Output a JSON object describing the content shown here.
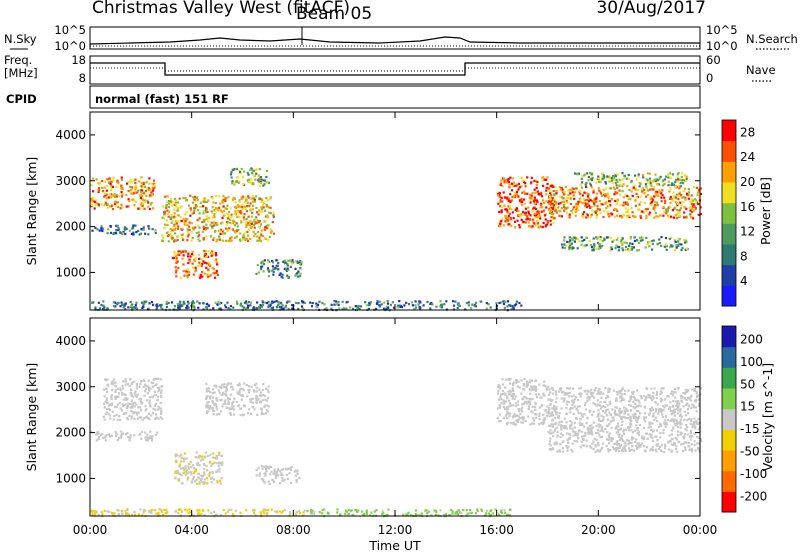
{
  "header": {
    "title": "Christmas Valley West (fitACF)",
    "beam": "Beam 05",
    "date": "30/Aug/2017"
  },
  "panel_labels": {
    "nsky": "N.Sky",
    "nsearch": "N.Search",
    "freq": "Freq.",
    "freq_unit": "[MHz]",
    "nave": "Nave",
    "cpid": "CPID",
    "cpid_value": "normal (fast) 151 RF"
  },
  "noise_ticks_left": [
    "10^5",
    "10^0"
  ],
  "noise_ticks_right": [
    "10^5",
    "10^0"
  ],
  "freq_ticks_left": [
    "18",
    "8"
  ],
  "nave_ticks_right": [
    "60",
    "0"
  ],
  "colors": {
    "scatter_gray": "#c8c8c8",
    "power_scale": [
      "#1a1aff",
      "#1f3fa6",
      "#2e7a72",
      "#4e9a5e",
      "#7fbf3f",
      "#f0e020",
      "#ffa000",
      "#ff5000",
      "#ff0000"
    ],
    "velocity_scale": [
      "#ff0000",
      "#ff6a00",
      "#ffa000",
      "#f2d000",
      "#c8c8c8",
      "#7fd04a",
      "#3aa84a",
      "#2a6aa0",
      "#1a1ab0"
    ]
  },
  "chart_data": [
    {
      "type": "heatmap",
      "title": "",
      "xlabel": "",
      "ylabel": "Slant Range [km]",
      "x_ticks": [
        "00:00",
        "04:00",
        "08:00",
        "12:00",
        "16:00",
        "20:00",
        "00:00"
      ],
      "y_ticks": [
        "1000",
        "2000",
        "3000",
        "4000"
      ],
      "xlim_hours": [
        0,
        24
      ],
      "ylim_km": [
        180,
        4500
      ],
      "colorbar": {
        "label": "Power [dB]",
        "ticks": [
          "4",
          "8",
          "12",
          "16",
          "20",
          "24",
          "28"
        ],
        "range": [
          0,
          30
        ]
      },
      "regions": [
        {
          "t0": 0.0,
          "t1": 2.5,
          "r0": 2400,
          "r1": 3100,
          "value": 22
        },
        {
          "t0": 2.8,
          "t1": 7.2,
          "r0": 1700,
          "r1": 2700,
          "value": 20
        },
        {
          "t0": 3.2,
          "t1": 5.0,
          "r0": 900,
          "r1": 1500,
          "value": 24
        },
        {
          "t0": 6.5,
          "t1": 8.3,
          "r0": 900,
          "r1": 1300,
          "value": 10
        },
        {
          "t0": 0.0,
          "t1": 2.6,
          "r0": 1850,
          "r1": 2050,
          "value": 8
        },
        {
          "t0": 5.5,
          "t1": 7.0,
          "r0": 2900,
          "r1": 3300,
          "value": 14
        },
        {
          "t0": 16.0,
          "t1": 18.2,
          "r0": 2000,
          "r1": 3100,
          "value": 26
        },
        {
          "t0": 18.0,
          "t1": 24.0,
          "r0": 2200,
          "r1": 2900,
          "value": 22
        },
        {
          "t0": 18.5,
          "t1": 23.5,
          "r0": 1500,
          "r1": 1800,
          "value": 12
        },
        {
          "t0": 19.0,
          "t1": 23.5,
          "r0": 2900,
          "r1": 3200,
          "value": 14
        },
        {
          "t0": 0.0,
          "t1": 17.0,
          "r0": 200,
          "r1": 400,
          "value": 8
        }
      ]
    },
    {
      "type": "heatmap",
      "title": "",
      "xlabel": "Time UT",
      "ylabel": "Slant Range [km]",
      "x_ticks": [
        "00:00",
        "04:00",
        "08:00",
        "12:00",
        "16:00",
        "20:00",
        "00:00"
      ],
      "y_ticks": [
        "1000",
        "2000",
        "3000",
        "4000"
      ],
      "xlim_hours": [
        0,
        24
      ],
      "ylim_km": [
        180,
        4500
      ],
      "colorbar": {
        "label": "Velocity [m s^-1]",
        "ticks": [
          "200",
          "100",
          "50",
          "15",
          "-15",
          "-50",
          "-100",
          "-200"
        ],
        "range": [
          -250,
          250
        ]
      },
      "regions": [
        {
          "t0": 0.5,
          "t1": 2.8,
          "r0": 2300,
          "r1": 3200,
          "value": 0
        },
        {
          "t0": 4.5,
          "t1": 7.0,
          "r0": 2400,
          "r1": 3100,
          "value": 0
        },
        {
          "t0": 3.3,
          "t1": 5.2,
          "r0": 900,
          "r1": 1600,
          "value": -20
        },
        {
          "t0": 0.0,
          "t1": 2.6,
          "r0": 1850,
          "r1": 2050,
          "value": 0
        },
        {
          "t0": 6.5,
          "t1": 8.2,
          "r0": 900,
          "r1": 1300,
          "value": 0
        },
        {
          "t0": 16.0,
          "t1": 18.0,
          "r0": 2200,
          "r1": 3200,
          "value": 0
        },
        {
          "t0": 18.0,
          "t1": 24.0,
          "r0": 1600,
          "r1": 3000,
          "value": 0
        },
        {
          "t0": 8.5,
          "t1": 16.5,
          "r0": 200,
          "r1": 350,
          "value": 40
        },
        {
          "t0": 0.0,
          "t1": 8.5,
          "r0": 200,
          "r1": 350,
          "value": -30
        }
      ]
    }
  ]
}
